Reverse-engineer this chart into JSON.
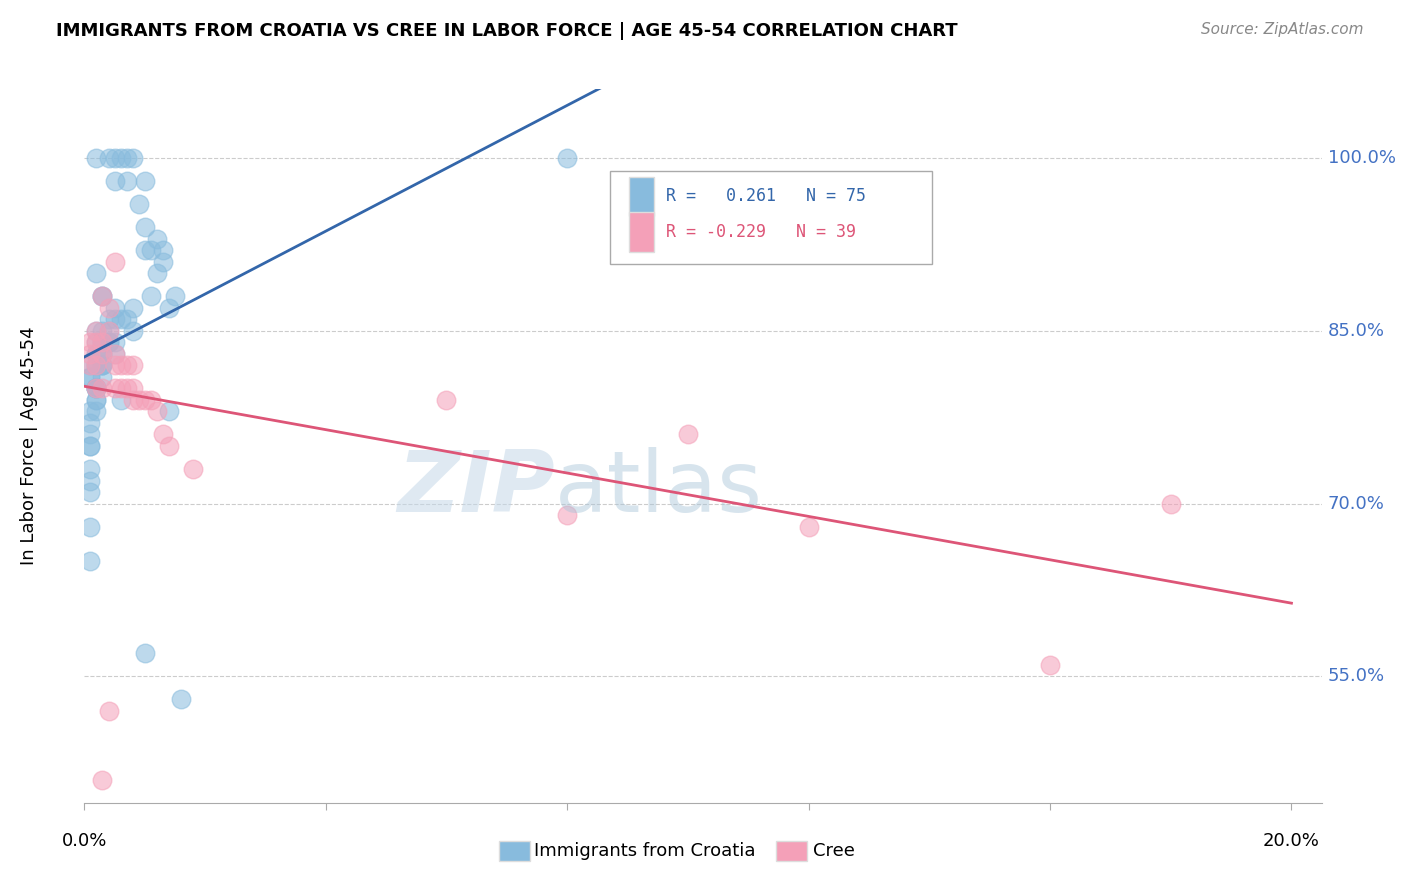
{
  "title": "IMMIGRANTS FROM CROATIA VS CREE IN LABOR FORCE | AGE 45-54 CORRELATION CHART",
  "source": "Source: ZipAtlas.com",
  "ylabel": "In Labor Force | Age 45-54",
  "ytick_vals": [
    0.55,
    0.7,
    0.85,
    1.0
  ],
  "ytick_labels": [
    "55.0%",
    "70.0%",
    "85.0%",
    "100.0%"
  ],
  "xtick_vals": [
    0.0,
    0.04,
    0.08,
    0.12,
    0.16,
    0.2
  ],
  "xlim": [
    0.0,
    0.205
  ],
  "ylim": [
    0.44,
    1.06
  ],
  "r1": 0.261,
  "n1": 75,
  "r2": -0.229,
  "n2": 39,
  "blue_color": "#88bbdd",
  "blue_edge_color": "#88bbdd",
  "pink_color": "#f4a0b8",
  "pink_edge_color": "#f4a0b8",
  "blue_line_color": "#3366aa",
  "pink_line_color": "#dd5577",
  "legend1_label": "Immigrants from Croatia",
  "legend2_label": "Cree",
  "blue_scatter_x": [
    0.002,
    0.004,
    0.005,
    0.005,
    0.006,
    0.007,
    0.007,
    0.008,
    0.009,
    0.01,
    0.01,
    0.01,
    0.011,
    0.011,
    0.012,
    0.012,
    0.013,
    0.013,
    0.014,
    0.015,
    0.002,
    0.003,
    0.003,
    0.004,
    0.005,
    0.005,
    0.006,
    0.007,
    0.008,
    0.008,
    0.002,
    0.002,
    0.003,
    0.003,
    0.003,
    0.004,
    0.004,
    0.004,
    0.005,
    0.005,
    0.002,
    0.002,
    0.002,
    0.002,
    0.003,
    0.003,
    0.003,
    0.003,
    0.003,
    0.003,
    0.001,
    0.001,
    0.001,
    0.002,
    0.002,
    0.002,
    0.002,
    0.002,
    0.002,
    0.002,
    0.001,
    0.001,
    0.001,
    0.001,
    0.001,
    0.001,
    0.001,
    0.001,
    0.001,
    0.001,
    0.08,
    0.006,
    0.014,
    0.01,
    0.016
  ],
  "blue_scatter_y": [
    1.0,
    1.0,
    1.0,
    0.98,
    1.0,
    1.0,
    0.98,
    1.0,
    0.96,
    0.98,
    0.92,
    0.94,
    0.92,
    0.88,
    0.9,
    0.93,
    0.91,
    0.92,
    0.87,
    0.88,
    0.9,
    0.88,
    0.88,
    0.86,
    0.86,
    0.87,
    0.86,
    0.86,
    0.85,
    0.87,
    0.84,
    0.85,
    0.84,
    0.85,
    0.84,
    0.84,
    0.85,
    0.84,
    0.84,
    0.83,
    0.83,
    0.82,
    0.83,
    0.82,
    0.83,
    0.82,
    0.83,
    0.81,
    0.82,
    0.82,
    0.82,
    0.81,
    0.81,
    0.8,
    0.8,
    0.79,
    0.8,
    0.8,
    0.79,
    0.78,
    0.78,
    0.77,
    0.76,
    0.75,
    0.75,
    0.73,
    0.72,
    0.71,
    0.68,
    0.65,
    1.0,
    0.79,
    0.78,
    0.57,
    0.53
  ],
  "pink_scatter_x": [
    0.001,
    0.001,
    0.001,
    0.002,
    0.002,
    0.002,
    0.002,
    0.003,
    0.003,
    0.003,
    0.003,
    0.004,
    0.004,
    0.005,
    0.005,
    0.005,
    0.006,
    0.006,
    0.007,
    0.007,
    0.008,
    0.008,
    0.008,
    0.009,
    0.01,
    0.011,
    0.012,
    0.013,
    0.014,
    0.018,
    0.06,
    0.08,
    0.1,
    0.12,
    0.16,
    0.18,
    0.003,
    0.004,
    0.005
  ],
  "pink_scatter_y": [
    0.82,
    0.84,
    0.83,
    0.85,
    0.84,
    0.82,
    0.8,
    0.88,
    0.84,
    0.83,
    0.8,
    0.87,
    0.85,
    0.83,
    0.82,
    0.8,
    0.82,
    0.8,
    0.82,
    0.8,
    0.82,
    0.8,
    0.79,
    0.79,
    0.79,
    0.79,
    0.78,
    0.76,
    0.75,
    0.73,
    0.79,
    0.69,
    0.76,
    0.68,
    0.56,
    0.7,
    0.46,
    0.52,
    0.91
  ]
}
